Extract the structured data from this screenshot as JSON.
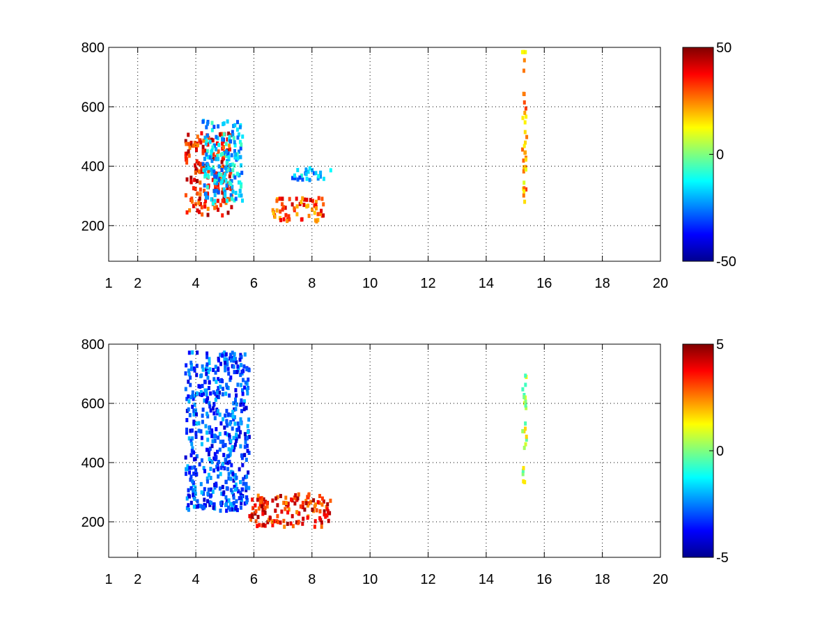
{
  "chart_data": [
    {
      "type": "heatmap",
      "title": "",
      "xlabel": "",
      "ylabel": "",
      "x_ticks": [
        "1",
        "2",
        "4",
        "6",
        "8",
        "10",
        "12",
        "14",
        "16",
        "18",
        "20"
      ],
      "x_tick_values": [
        1,
        2,
        4,
        6,
        8,
        10,
        12,
        14,
        16,
        18,
        20
      ],
      "y_ticks": [
        "200",
        "400",
        "600",
        "800"
      ],
      "y_tick_values": [
        200,
        400,
        600,
        800
      ],
      "xlim": [
        1,
        20
      ],
      "ylim": [
        80,
        800
      ],
      "grid": true,
      "colormap": "jet",
      "colorbar": {
        "ticks": [
          "50",
          "0",
          "-50"
        ],
        "tick_values": [
          50,
          0,
          -50
        ],
        "range": [
          -50,
          50
        ]
      },
      "features": [
        {
          "x": [
            3.6,
            5.2
          ],
          "y": [
            240,
            520
          ],
          "value": 35
        },
        {
          "x": [
            4.2,
            5.6
          ],
          "y": [
            280,
            560
          ],
          "value": -18
        },
        {
          "x": [
            6.6,
            8.4
          ],
          "y": [
            220,
            300
          ],
          "value": 30
        },
        {
          "x": [
            7.2,
            8.6
          ],
          "y": [
            360,
            400
          ],
          "value": -20
        },
        {
          "x": [
            15.2,
            15.35
          ],
          "y": [
            280,
            800
          ],
          "value": 20
        }
      ]
    },
    {
      "type": "heatmap",
      "title": "",
      "xlabel": "",
      "ylabel": "",
      "x_ticks": [
        "1",
        "2",
        "4",
        "6",
        "8",
        "10",
        "12",
        "14",
        "16",
        "18",
        "20"
      ],
      "x_tick_values": [
        1,
        2,
        4,
        6,
        8,
        10,
        12,
        14,
        16,
        18,
        20
      ],
      "y_ticks": [
        "200",
        "400",
        "600",
        "800"
      ],
      "y_tick_values": [
        200,
        400,
        600,
        800
      ],
      "xlim": [
        1,
        20
      ],
      "ylim": [
        80,
        800
      ],
      "grid": true,
      "colormap": "jet",
      "colorbar": {
        "ticks": [
          "5",
          "0",
          "-5"
        ],
        "tick_values": [
          5,
          0,
          -5
        ],
        "range": [
          -5,
          5
        ]
      },
      "features": [
        {
          "x": [
            3.6,
            5.8
          ],
          "y": [
            240,
            780
          ],
          "value": -3
        },
        {
          "x": [
            5.8,
            8.6
          ],
          "y": [
            190,
            300
          ],
          "value": 3.5
        },
        {
          "x": [
            15.2,
            15.35
          ],
          "y": [
            340,
            720
          ],
          "value": 0.5
        }
      ]
    }
  ]
}
